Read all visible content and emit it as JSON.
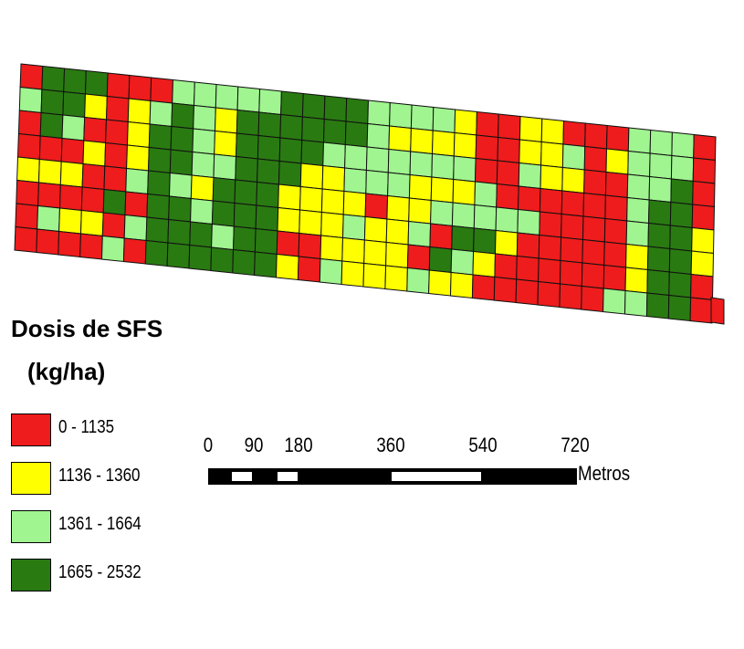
{
  "map": {
    "rows": 8,
    "cols": 32,
    "grid_codes": [
      "RGGGRRRLLLLLGGGGLLLLYRRYYRRRLLLR",
      "LGGYRYLGLYGGGGGGLYYYYRRYYLRYLLLR",
      "RGLRRYGGLYGGGGLLLLLLLRRLYYRRLLGR",
      "RRRYRYGGLLGGGYYLLLYYYLRRRRRRLGGR",
      "YYYRRLGLYGGGYYYYRYYLLLLLRRRRLGGY",
      "RRRRGRGGLGGGYYYLYYLRGGYRRRRRYGGY",
      "RLYYRLGGGLGGRRYYYYRGLYRRRRRRYGGR",
      "RRRRLRGGGGGGYRLYYYLYYRRRRRRLLGGR"
    ],
    "corners_note": "",
    "colors": {
      "R": "#ee1c1c",
      "Y": "#ffff00",
      "L": "#a0f590",
      "G": "#2a7a12"
    }
  },
  "legend": {
    "title_line1": "Dosis de SFS",
    "title_line2": "(kg/ha)",
    "items": [
      {
        "code": "R",
        "label": "0 - 1135",
        "color": "#ee1c1c"
      },
      {
        "code": "Y",
        "label": "1136 - 1360",
        "color": "#ffff00"
      },
      {
        "code": "L",
        "label": "1361 - 1664",
        "color": "#a0f590"
      },
      {
        "code": "G",
        "label": "1665 - 2532",
        "color": "#2a7a12"
      }
    ]
  },
  "scale": {
    "ticks": [
      "0",
      "90",
      "180",
      "360",
      "540",
      "720"
    ],
    "tick_values": [
      0,
      90,
      180,
      360,
      540,
      720
    ],
    "unit": "Metros"
  }
}
